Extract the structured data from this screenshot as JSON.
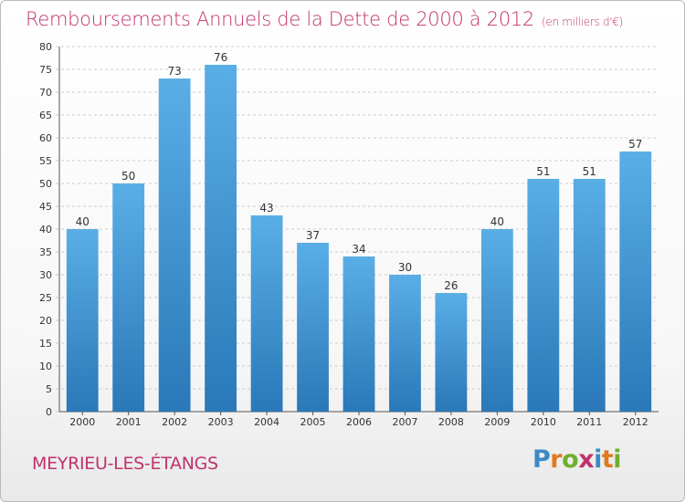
{
  "title": "Remboursements Annuels de la Dette de 2000 à 2012",
  "subtitle": "(en milliers d'€)",
  "commune": "MEYRIEU-LES-ÉTANGS",
  "brand": {
    "letters": [
      "P",
      "r",
      "o",
      "x",
      "i",
      "t",
      "i"
    ],
    "colors": [
      "#3d8ac6",
      "#e07a1f",
      "#6fae2f",
      "#c0336c",
      "#3d8ac6",
      "#e07a1f",
      "#6fae2f"
    ]
  },
  "colors": {
    "accent": "#c0336c",
    "bar_top": "#5aaee6",
    "bar_bottom": "#2a78b8",
    "grid": "#cccccc"
  },
  "chart_data": {
    "type": "bar",
    "categories": [
      "2000",
      "2001",
      "2002",
      "2003",
      "2004",
      "2005",
      "2006",
      "2007",
      "2008",
      "2009",
      "2010",
      "2011",
      "2012"
    ],
    "values": [
      40,
      50,
      73,
      76,
      43,
      37,
      34,
      30,
      26,
      40,
      51,
      51,
      57
    ],
    "xlabel": "",
    "ylabel": "",
    "ylim": [
      0,
      80
    ],
    "yticks": [
      0,
      5,
      10,
      15,
      20,
      25,
      30,
      35,
      40,
      45,
      50,
      55,
      60,
      65,
      70,
      75,
      80
    ],
    "grid": true,
    "show_data_labels": true
  }
}
